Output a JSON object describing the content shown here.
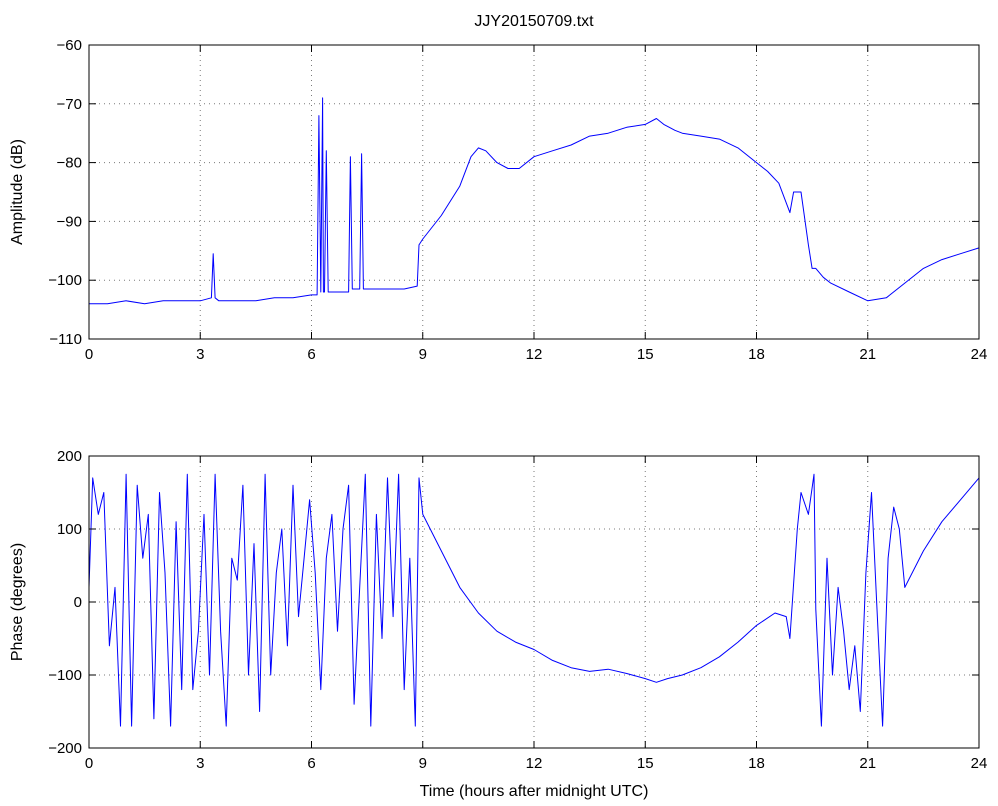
{
  "chart_data": [
    {
      "type": "line",
      "title": "JJY20150709.txt",
      "xlabel": "",
      "ylabel": "Amplitude (dB)",
      "xlim": [
        0,
        24
      ],
      "ylim": [
        -110,
        -60
      ],
      "xticks": [
        0,
        3,
        6,
        9,
        12,
        15,
        18,
        21,
        24
      ],
      "yticks": [
        -110,
        -100,
        -90,
        -80,
        -70,
        -60
      ],
      "ytick_labels": [
        "−110",
        "−100",
        "−90",
        "−80",
        "−70",
        "−60"
      ],
      "grid": true,
      "color": "#0000ff",
      "series": [
        {
          "x": [
            0,
            0.5,
            1,
            1.5,
            2,
            2.5,
            3,
            3.3,
            3.35,
            3.4,
            3.5,
            4,
            4.5,
            5,
            5.5,
            6,
            6.15,
            6.2,
            6.25,
            6.3,
            6.32,
            6.35,
            6.4,
            6.45,
            6.5,
            7,
            7.05,
            7.1,
            7.15,
            7.3,
            7.35,
            7.4,
            7.5,
            8,
            8.5,
            8.85,
            8.9,
            9,
            9.5,
            10,
            10.3,
            10.5,
            10.7,
            11,
            11.3,
            11.6,
            12,
            12.5,
            13,
            13.5,
            14,
            14.5,
            15,
            15.3,
            15.5,
            15.8,
            16,
            16.5,
            17,
            17.5,
            18,
            18.3,
            18.6,
            18.9,
            19,
            19.2,
            19.4,
            19.5,
            19.6,
            19.8,
            20,
            20.5,
            21,
            21.5,
            22,
            22.5,
            23,
            23.5,
            24
          ],
          "values": [
            -104,
            -104,
            -103.5,
            -104,
            -103.5,
            -103.5,
            -103.5,
            -103,
            -95.5,
            -103,
            -103.5,
            -103.5,
            -103.5,
            -103,
            -103,
            -102.5,
            -102.5,
            -72,
            -102,
            -69,
            -102,
            -102,
            -78,
            -102,
            -102,
            -102,
            -79,
            -101.5,
            -101.5,
            -101.5,
            -78.5,
            -101.5,
            -101.5,
            -101.5,
            -101.5,
            -101,
            -94,
            -93,
            -89,
            -84,
            -79,
            -77.5,
            -78,
            -80,
            -81,
            -81,
            -79,
            -78,
            -77,
            -75.5,
            -75,
            -74,
            -73.5,
            -72.5,
            -73.5,
            -74.5,
            -75,
            -75.5,
            -76,
            -77.5,
            -80,
            -81.5,
            -83.5,
            -88.5,
            -85,
            -85,
            -94,
            -98,
            -98,
            -99.5,
            -100.5,
            -102,
            -103.5,
            -103,
            -100.5,
            -98,
            -96.5,
            -95.5,
            -94.5
          ]
        }
      ]
    },
    {
      "type": "line",
      "title": "",
      "xlabel": "Time (hours after midnight UTC)",
      "ylabel": "Phase (degrees)",
      "xlim": [
        0,
        24
      ],
      "ylim": [
        -200,
        200
      ],
      "xticks": [
        0,
        3,
        6,
        9,
        12,
        15,
        18,
        21,
        24
      ],
      "yticks": [
        -200,
        -100,
        0,
        100,
        200
      ],
      "ytick_labels": [
        "−200",
        "−100",
        "0",
        "100",
        "200"
      ],
      "grid": true,
      "color": "#0000ff",
      "series": [
        {
          "x": [
            0,
            0.1,
            0.25,
            0.4,
            0.55,
            0.7,
            0.85,
            1.0,
            1.15,
            1.3,
            1.45,
            1.6,
            1.75,
            1.9,
            2.05,
            2.2,
            2.35,
            2.5,
            2.65,
            2.8,
            2.95,
            3.1,
            3.25,
            3.4,
            3.55,
            3.7,
            3.85,
            4.0,
            4.15,
            4.3,
            4.45,
            4.6,
            4.75,
            4.9,
            5.05,
            5.2,
            5.35,
            5.5,
            5.65,
            5.8,
            5.95,
            6.1,
            6.25,
            6.4,
            6.55,
            6.7,
            6.85,
            7.0,
            7.15,
            7.3,
            7.45,
            7.6,
            7.75,
            7.9,
            8.05,
            8.2,
            8.35,
            8.5,
            8.65,
            8.8,
            8.9,
            9.0,
            9.5,
            10,
            10.5,
            11,
            11.5,
            12,
            12.5,
            13,
            13.5,
            14,
            14.5,
            15,
            15.3,
            15.6,
            16,
            16.5,
            17,
            17.5,
            18,
            18.5,
            18.8,
            18.9,
            19.1,
            19.2,
            19.4,
            19.55,
            19.6,
            19.75,
            19.9,
            20.05,
            20.2,
            20.35,
            20.5,
            20.65,
            20.8,
            20.95,
            21.1,
            21.25,
            21.4,
            21.55,
            21.7,
            21.85,
            22,
            22.5,
            23,
            23.5,
            24
          ],
          "values": [
            20,
            170,
            120,
            150,
            -60,
            20,
            -170,
            175,
            -170,
            160,
            60,
            120,
            -160,
            150,
            40,
            -170,
            110,
            -120,
            175,
            -120,
            -40,
            120,
            -100,
            175,
            -40,
            -170,
            60,
            30,
            160,
            -100,
            80,
            -150,
            175,
            -100,
            40,
            100,
            -60,
            160,
            -20,
            60,
            140,
            40,
            -120,
            60,
            120,
            -40,
            100,
            160,
            -140,
            20,
            175,
            -170,
            120,
            -50,
            170,
            -20,
            175,
            -120,
            60,
            -170,
            170,
            120,
            70,
            20,
            -15,
            -40,
            -55,
            -65,
            -80,
            -90,
            -95,
            -92,
            -98,
            -105,
            -110,
            -105,
            -100,
            -90,
            -75,
            -55,
            -32,
            -15,
            -20,
            -50,
            100,
            150,
            120,
            175,
            -10,
            -170,
            60,
            -100,
            20,
            -40,
            -120,
            -60,
            -150,
            40,
            150,
            -10,
            -170,
            60,
            130,
            100,
            20,
            70,
            110,
            140,
            170
          ]
        }
      ]
    }
  ]
}
